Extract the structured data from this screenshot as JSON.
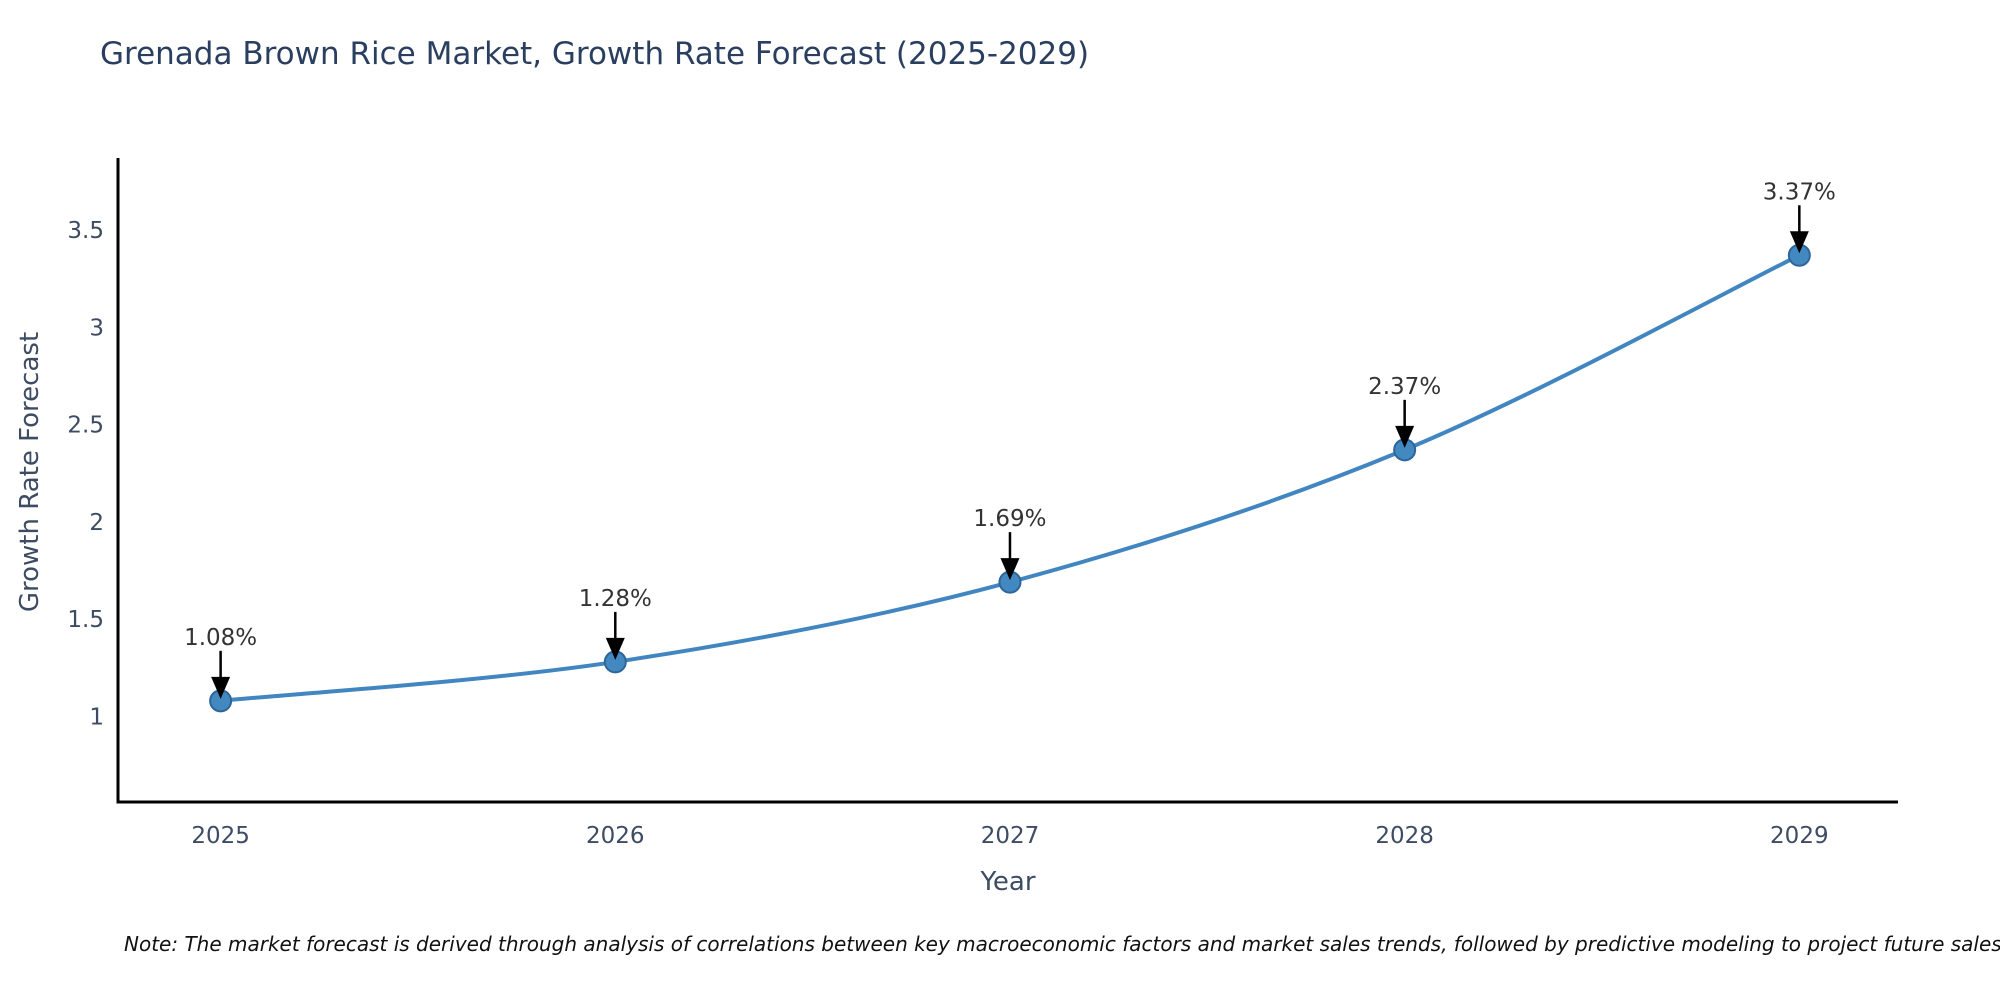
{
  "chart": {
    "title": "Grenada Brown Rice Market, Growth Rate Forecast (2025-2029)",
    "note": "Note: The market forecast is derived through analysis of correlations between key macroeconomic factors and market sales trends, followed by predictive modeling to project future sales"
  },
  "chart_data": {
    "type": "line",
    "title": "Grenada Brown Rice Market, Growth Rate Forecast (2025-2029)",
    "xlabel": "Year",
    "ylabel": "Growth Rate Forecast",
    "x": [
      2025,
      2026,
      2027,
      2028,
      2029
    ],
    "values": [
      1.08,
      1.28,
      1.69,
      2.37,
      3.37
    ],
    "point_labels": [
      "1.08%",
      "1.28%",
      "1.69%",
      "2.37%",
      "3.37%"
    ],
    "xticks": [
      "2025",
      "2026",
      "2027",
      "2028",
      "2029"
    ],
    "xtick_values": [
      2025,
      2026,
      2027,
      2028,
      2029
    ],
    "yticks": [
      "1",
      "1.5",
      "2",
      "2.5",
      "3",
      "3.5"
    ],
    "ytick_values": [
      1,
      1.5,
      2,
      2.5,
      3,
      3.5
    ],
    "xlim": [
      2024.74,
      2029.25
    ],
    "ylim": [
      0.56,
      3.87
    ],
    "grid": false,
    "legend": false,
    "annotations_have_arrows": true,
    "colors": {
      "line": "#4186c0",
      "marker_fill": "#4288c1",
      "marker_edge": "#2f6598",
      "arrow": "#000000",
      "spine": "#000000",
      "title_text": "#2a3f5f",
      "axis_text": "#3d4c63",
      "annotation_text": "#333333",
      "note_text": "#111111",
      "background": "#ffffff"
    }
  }
}
